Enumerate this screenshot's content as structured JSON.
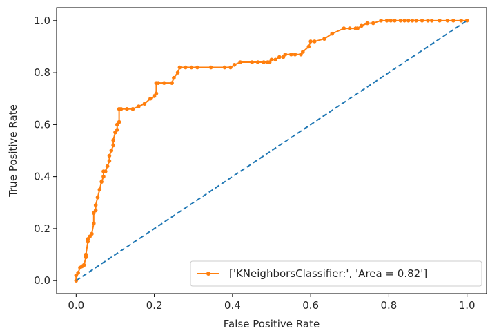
{
  "chart_data": {
    "type": "line",
    "xlabel": "False Positive Rate",
    "ylabel": "True Positive Rate",
    "xlim": [
      -0.05,
      1.05
    ],
    "ylim": [
      -0.05,
      1.05
    ],
    "x_ticks": [
      "0.0",
      "0.2",
      "0.4",
      "0.6",
      "0.8",
      "1.0"
    ],
    "y_ticks": [
      "0.0",
      "0.2",
      "0.4",
      "0.6",
      "0.8",
      "1.0"
    ],
    "grid": false,
    "legend_position": "lower-right",
    "series": [
      {
        "name": "['KNeighborsClassifier:', 'Area = 0.82']",
        "style": "solid-with-markers",
        "color": "#ff7f0e",
        "x": [
          0.0,
          0.0,
          0.005,
          0.01,
          0.015,
          0.02,
          0.025,
          0.025,
          0.03,
          0.03,
          0.035,
          0.04,
          0.045,
          0.045,
          0.05,
          0.05,
          0.055,
          0.06,
          0.065,
          0.07,
          0.07,
          0.075,
          0.08,
          0.085,
          0.085,
          0.09,
          0.095,
          0.095,
          0.1,
          0.105,
          0.105,
          0.11,
          0.11,
          0.115,
          0.13,
          0.145,
          0.16,
          0.175,
          0.19,
          0.2,
          0.205,
          0.205,
          0.21,
          0.225,
          0.245,
          0.25,
          0.26,
          0.265,
          0.28,
          0.295,
          0.31,
          0.345,
          0.38,
          0.395,
          0.405,
          0.42,
          0.45,
          0.465,
          0.48,
          0.49,
          0.495,
          0.5,
          0.51,
          0.52,
          0.53,
          0.535,
          0.55,
          0.56,
          0.575,
          0.58,
          0.595,
          0.6,
          0.61,
          0.635,
          0.655,
          0.685,
          0.7,
          0.715,
          0.72,
          0.73,
          0.745,
          0.76,
          0.78,
          0.795,
          0.805,
          0.815,
          0.83,
          0.84,
          0.85,
          0.86,
          0.87,
          0.885,
          0.9,
          0.91,
          0.93,
          0.95,
          0.965,
          0.985,
          1.0
        ],
        "y": [
          0.0,
          0.02,
          0.03,
          0.05,
          0.055,
          0.06,
          0.09,
          0.1,
          0.15,
          0.16,
          0.17,
          0.18,
          0.22,
          0.26,
          0.27,
          0.29,
          0.32,
          0.35,
          0.38,
          0.4,
          0.42,
          0.42,
          0.44,
          0.46,
          0.48,
          0.5,
          0.52,
          0.54,
          0.57,
          0.58,
          0.6,
          0.61,
          0.66,
          0.66,
          0.66,
          0.66,
          0.67,
          0.68,
          0.7,
          0.71,
          0.72,
          0.76,
          0.76,
          0.76,
          0.76,
          0.78,
          0.8,
          0.82,
          0.82,
          0.82,
          0.82,
          0.82,
          0.82,
          0.82,
          0.83,
          0.84,
          0.84,
          0.84,
          0.84,
          0.84,
          0.84,
          0.85,
          0.85,
          0.86,
          0.86,
          0.87,
          0.87,
          0.87,
          0.87,
          0.88,
          0.9,
          0.92,
          0.92,
          0.93,
          0.95,
          0.97,
          0.97,
          0.97,
          0.97,
          0.98,
          0.99,
          0.99,
          1.0,
          1.0,
          1.0,
          1.0,
          1.0,
          1.0,
          1.0,
          1.0,
          1.0,
          1.0,
          1.0,
          1.0,
          1.0,
          1.0,
          1.0,
          1.0,
          1.0
        ]
      },
      {
        "style": "dashed",
        "color": "#1f77b4",
        "x": [
          0.0,
          1.0
        ],
        "y": [
          0.0,
          1.0
        ]
      }
    ]
  }
}
